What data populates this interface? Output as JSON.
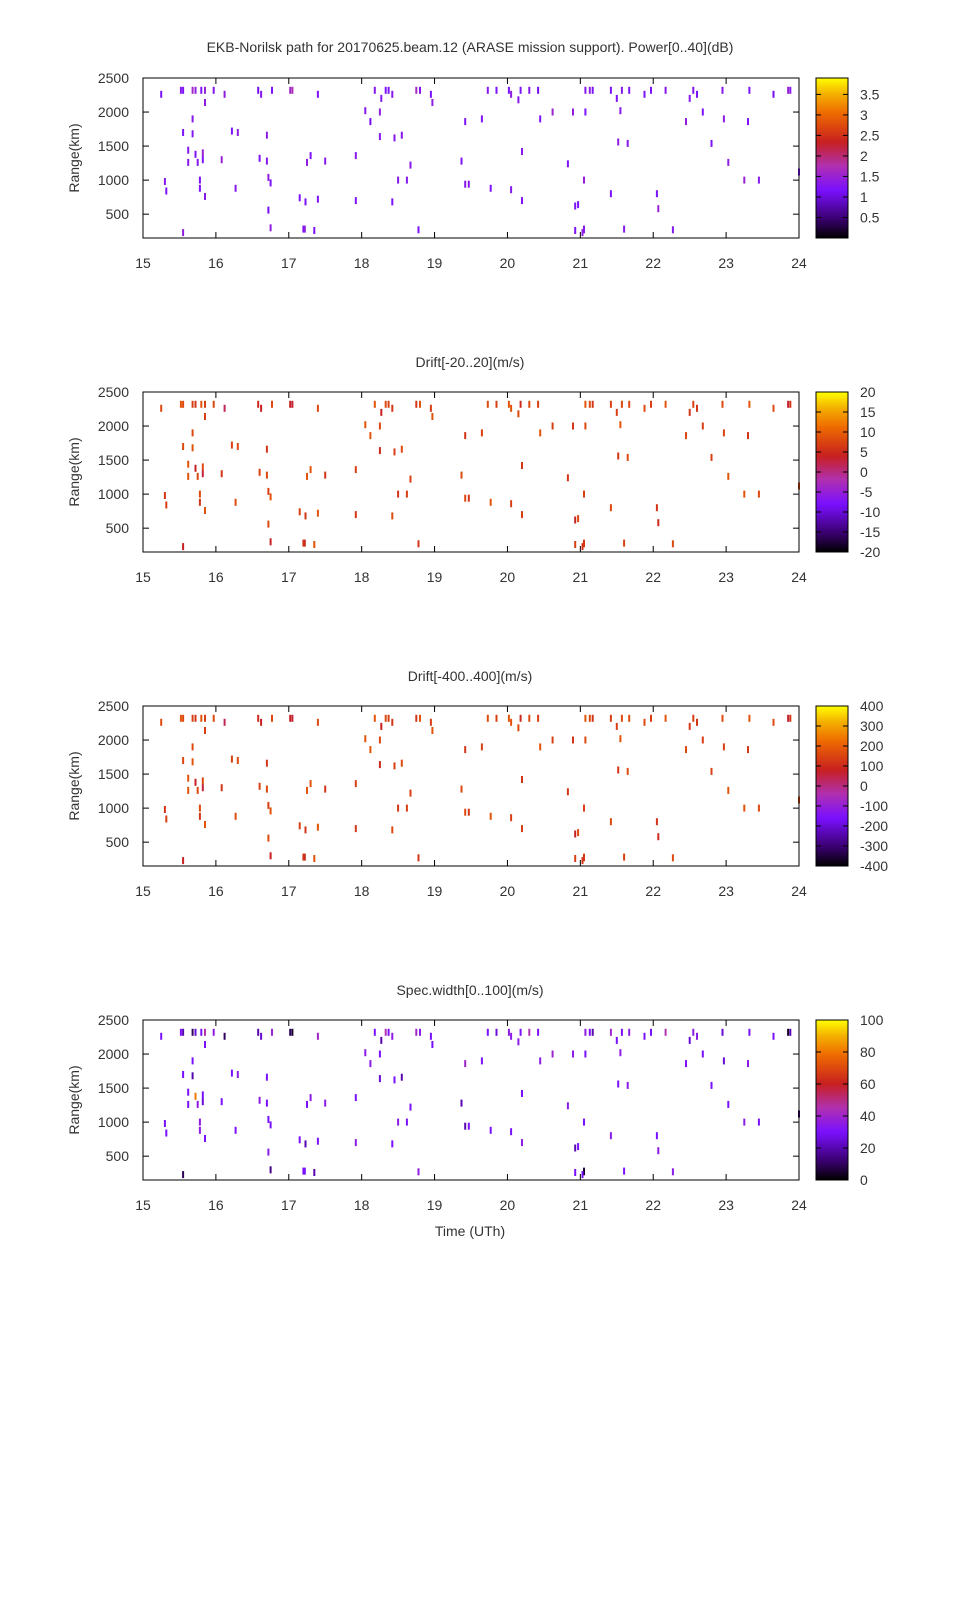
{
  "chart_data": [
    {
      "type": "heatmap",
      "title": "EKB-Norilsk path for 20170625.beam.12 (ARASE mission support). Power[0..40](dB)",
      "xlabel": "",
      "ylabel": "Range(km)",
      "xlim": [
        15,
        24
      ],
      "ylim": [
        150,
        2500
      ],
      "xticks": [
        "15",
        "16",
        "17",
        "18",
        "19",
        "20",
        "21",
        "22",
        "23",
        "24"
      ],
      "yticks": [
        "500",
        "1000",
        "1500",
        "2000",
        "2500"
      ],
      "colorbar": {
        "min": 0,
        "max": 3.9,
        "ticks": [
          {
            "value": 0.5,
            "label": "0.5"
          },
          {
            "value": 1,
            "label": "1"
          },
          {
            "value": 1.5,
            "label": "1.5"
          },
          {
            "value": 2,
            "label": "2"
          },
          {
            "value": 2.5,
            "label": "2.5"
          },
          {
            "value": 3,
            "label": "3"
          },
          {
            "value": 3.5,
            "label": "3.5"
          }
        ]
      },
      "grid": false
    },
    {
      "type": "heatmap",
      "title": "Drift[-20..20](m/s)",
      "xlabel": "",
      "ylabel": "Range(km)",
      "xlim": [
        15,
        24
      ],
      "ylim": [
        150,
        2500
      ],
      "xticks": [
        "15",
        "16",
        "17",
        "18",
        "19",
        "20",
        "21",
        "22",
        "23",
        "24"
      ],
      "yticks": [
        "500",
        "1000",
        "1500",
        "2000",
        "2500"
      ],
      "colorbar": {
        "min": -20,
        "max": 20,
        "ticks": [
          {
            "value": -20,
            "label": "-20"
          },
          {
            "value": -15,
            "label": "-15"
          },
          {
            "value": -10,
            "label": "-10"
          },
          {
            "value": -5,
            "label": "-5"
          },
          {
            "value": 0,
            "label": "0"
          },
          {
            "value": 5,
            "label": "5"
          },
          {
            "value": 10,
            "label": "10"
          },
          {
            "value": 15,
            "label": "15"
          },
          {
            "value": 20,
            "label": "20"
          }
        ]
      },
      "grid": false
    },
    {
      "type": "heatmap",
      "title": "Drift[-400..400](m/s)",
      "xlabel": "",
      "ylabel": "Range(km)",
      "xlim": [
        15,
        24
      ],
      "ylim": [
        150,
        2500
      ],
      "xticks": [
        "15",
        "16",
        "17",
        "18",
        "19",
        "20",
        "21",
        "22",
        "23",
        "24"
      ],
      "yticks": [
        "500",
        "1000",
        "1500",
        "2000",
        "2500"
      ],
      "colorbar": {
        "min": -400,
        "max": 400,
        "ticks": [
          {
            "value": -400,
            "label": "-400"
          },
          {
            "value": -300,
            "label": "-300"
          },
          {
            "value": -200,
            "label": "-200"
          },
          {
            "value": -100,
            "label": "-100"
          },
          {
            "value": 0,
            "label": "0"
          },
          {
            "value": 100,
            "label": "100"
          },
          {
            "value": 200,
            "label": "200"
          },
          {
            "value": 300,
            "label": "300"
          },
          {
            "value": 400,
            "label": "400"
          }
        ]
      },
      "grid": false
    },
    {
      "type": "heatmap",
      "title": "Spec.width[0..100](m/s)",
      "xlabel": "Time (UTh)",
      "ylabel": "Range(km)",
      "xlim": [
        15,
        24
      ],
      "ylim": [
        150,
        2500
      ],
      "xticks": [
        "15",
        "16",
        "17",
        "18",
        "19",
        "20",
        "21",
        "22",
        "23",
        "24"
      ],
      "yticks": [
        "500",
        "1000",
        "1500",
        "2000",
        "2500"
      ],
      "colorbar": {
        "min": 0,
        "max": 100,
        "ticks": [
          {
            "value": 0,
            "label": "0"
          },
          {
            "value": 20,
            "label": "20"
          },
          {
            "value": 40,
            "label": "40"
          },
          {
            "value": 60,
            "label": "60"
          },
          {
            "value": 80,
            "label": "80"
          },
          {
            "value": 100,
            "label": "100"
          }
        ]
      },
      "grid": false
    }
  ],
  "echoes": {
    "t": [
      15.52,
      15.55,
      15.68,
      15.72,
      15.8,
      15.85,
      15.97,
      16.58,
      16.77,
      17.02,
      17.05,
      18.18,
      18.33,
      18.37,
      18.75,
      18.8,
      19.73,
      19.85,
      20.02,
      20.18,
      20.3,
      20.42,
      21.07,
      21.13,
      21.17,
      21.42,
      21.57,
      21.67,
      21.97,
      22.17,
      22.55,
      22.95,
      23.32,
      23.85,
      23.88,
      15.25,
      16.12,
      16.62,
      17.4,
      18.42,
      18.95,
      20.05,
      21.88,
      22.6,
      23.65,
      15.85,
      18.27,
      18.97,
      20.15,
      21.5,
      22.5,
      18.05,
      18.25,
      20.62,
      20.9,
      21.07,
      21.55,
      22.68,
      15.68,
      18.12,
      19.42,
      19.65,
      20.45,
      22.45,
      22.97,
      23.3,
      15.55,
      15.68,
      16.22,
      16.3,
      16.7,
      18.25,
      18.45,
      18.55,
      21.52,
      21.65,
      22.8,
      15.62,
      15.72,
      15.82,
      17.3,
      17.92,
      20.2,
      15.62,
      15.75,
      15.82,
      16.08,
      16.6,
      16.7,
      17.25,
      17.5,
      18.67,
      19.37,
      20.83,
      23.03,
      24.0,
      15.3,
      15.78,
      16.72,
      16.75,
      18.5,
      18.62,
      19.42,
      19.47,
      21.05,
      23.25,
      23.45,
      15.32,
      15.78,
      16.27,
      19.77,
      20.05,
      21.42,
      22.05,
      15.85,
      16.72,
      17.15,
      17.23,
      17.4,
      17.92,
      18.42,
      20.2,
      20.93,
      20.97,
      22.07,
      16.75,
      17.2,
      17.35,
      18.78,
      20.93,
      21.05,
      21.05,
      15.55,
      17.22,
      21.03,
      21.6,
      22.27
    ],
    "r": [
      2320,
      2320,
      2320,
      2320,
      2320,
      2320,
      2320,
      2320,
      2320,
      2320,
      2320,
      2320,
      2320,
      2320,
      2320,
      2320,
      2320,
      2320,
      2320,
      2320,
      2320,
      2320,
      2320,
      2320,
      2320,
      2320,
      2320,
      2320,
      2320,
      2320,
      2320,
      2320,
      2320,
      2320,
      2320,
      2260,
      2260,
      2260,
      2260,
      2260,
      2260,
      2260,
      2260,
      2260,
      2260,
      2140,
      2200,
      2140,
      2180,
      2200,
      2200,
      2020,
      2000,
      2000,
      2000,
      2000,
      2020,
      2000,
      1900,
      1860,
      1860,
      1900,
      1900,
      1860,
      1900,
      1860,
      1700,
      1680,
      1720,
      1700,
      1660,
      1640,
      1620,
      1660,
      1560,
      1540,
      1540,
      1440,
      1380,
      1400,
      1360,
      1360,
      1420,
      1260,
      1260,
      1300,
      1300,
      1320,
      1280,
      1260,
      1280,
      1220,
      1280,
      1240,
      1260,
      1120,
      980,
      1000,
      1040,
      960,
      1000,
      1000,
      940,
      940,
      1000,
      1000,
      1000,
      840,
      880,
      880,
      880,
      860,
      800,
      800,
      760,
      560,
      740,
      680,
      720,
      700,
      680,
      700,
      620,
      640,
      580,
      300,
      280,
      260,
      270,
      260,
      280,
      270,
      230,
      280,
      230,
      280,
      270
    ],
    "p": [
      1.3,
      1.2,
      1.6,
      1.4,
      1.2,
      1.5,
      1.3,
      1.1,
      1.2,
      1.6,
      1.7,
      1.3,
      1.2,
      1.2,
      1.6,
      1.3,
      1.3,
      1.2,
      1.2,
      1.2,
      1.3,
      1.1,
      1.3,
      1.4,
      1.2,
      1.2,
      1.3,
      1.2,
      1.2,
      1.3,
      1.3,
      1.3,
      1.2,
      1.5,
      1.3,
      1.2,
      1.4,
      1.3,
      1.2,
      1.3,
      1.2,
      1.4,
      1.2,
      1.2,
      1.1,
      1.4,
      1.3,
      1.4,
      1.3,
      1.2,
      1.3,
      1.3,
      1.4,
      1.5,
      1.4,
      1.2,
      1.3,
      1.2,
      1.3,
      1.1,
      1.2,
      1.2,
      1.2,
      1.4,
      1.4,
      1.2,
      1.2,
      1.3,
      1.2,
      1.4,
      1.4,
      1.3,
      1.3,
      1.3,
      1.4,
      1.3,
      1.2,
      1.3,
      1.2,
      1.5,
      1.2,
      1.3,
      1.3,
      1.3,
      1.3,
      1.2,
      1.5,
      1.2,
      1.3,
      1.4,
      1.3,
      1.3,
      1.2,
      1.2,
      1.4,
      1.2,
      1.3,
      1.2,
      1.4,
      1.2,
      1.3,
      1.3,
      1.3,
      1.3,
      1.4,
      1.5,
      1.3,
      1.2,
      1.2,
      1.3,
      1.2,
      1.3,
      1.2,
      1.2,
      1.3,
      1.1,
      1.2,
      1.2,
      1.2,
      1.2,
      1.2,
      1.2,
      1.2,
      1.2,
      1.5,
      1.4,
      1.2,
      1.2,
      1.2,
      1.2,
      1.3,
      1.3,
      1.4,
      1.4,
      1.4,
      1.3,
      1.3,
      1.2,
      1.2
    ],
    "v": [
      9,
      8,
      7,
      6,
      9,
      7,
      8,
      5,
      8,
      4,
      3,
      9,
      8,
      7,
      6,
      9,
      8,
      7,
      9,
      5,
      8,
      7,
      9,
      8,
      6,
      7,
      8,
      8,
      7,
      9,
      7,
      8,
      9,
      3,
      6,
      8,
      2,
      4,
      8,
      6,
      7,
      9,
      8,
      6,
      8,
      7,
      4,
      9,
      8,
      7,
      6,
      9,
      8,
      7,
      6,
      8,
      9,
      7,
      8,
      9,
      6,
      7,
      9,
      8,
      7,
      6,
      8,
      9,
      7,
      8,
      6,
      5,
      7,
      8,
      6,
      8,
      7,
      9,
      4,
      8,
      9,
      7,
      6,
      9,
      8,
      3,
      6,
      7,
      8,
      9,
      6,
      7,
      8,
      6,
      9,
      8,
      6,
      8,
      7,
      9,
      6,
      7,
      8,
      6,
      7,
      9,
      8,
      7,
      6,
      8,
      9,
      7,
      8,
      6,
      9,
      8,
      7,
      6,
      9,
      6,
      8,
      7,
      4,
      8,
      5,
      4,
      6,
      9,
      6,
      7,
      8,
      6,
      4,
      5,
      6,
      7,
      8,
      6,
      7
    ],
    "w": [
      30,
      20,
      10,
      25,
      30,
      45,
      35,
      20,
      40,
      10,
      5,
      30,
      45,
      30,
      40,
      35,
      30,
      25,
      35,
      30,
      45,
      30,
      35,
      30,
      20,
      40,
      30,
      35,
      30,
      45,
      35,
      25,
      30,
      5,
      20,
      30,
      10,
      25,
      40,
      35,
      30,
      35,
      30,
      35,
      30,
      30,
      20,
      30,
      35,
      30,
      25,
      35,
      30,
      40,
      35,
      30,
      35,
      30,
      30,
      35,
      40,
      30,
      35,
      30,
      25,
      35,
      30,
      20,
      30,
      35,
      30,
      25,
      30,
      20,
      30,
      35,
      30,
      30,
      80,
      30,
      35,
      30,
      30,
      30,
      35,
      25,
      30,
      35,
      30,
      30,
      35,
      30,
      20,
      35,
      30,
      10,
      30,
      35,
      30,
      30,
      35,
      30,
      20,
      30,
      30,
      35,
      30,
      30,
      35,
      30,
      30,
      30,
      35,
      30,
      30,
      35,
      30,
      20,
      30,
      35,
      30,
      35,
      20,
      30,
      35,
      15,
      30,
      20,
      35,
      30,
      15,
      5,
      10,
      30,
      30,
      30,
      35,
      30,
      30
    ]
  }
}
